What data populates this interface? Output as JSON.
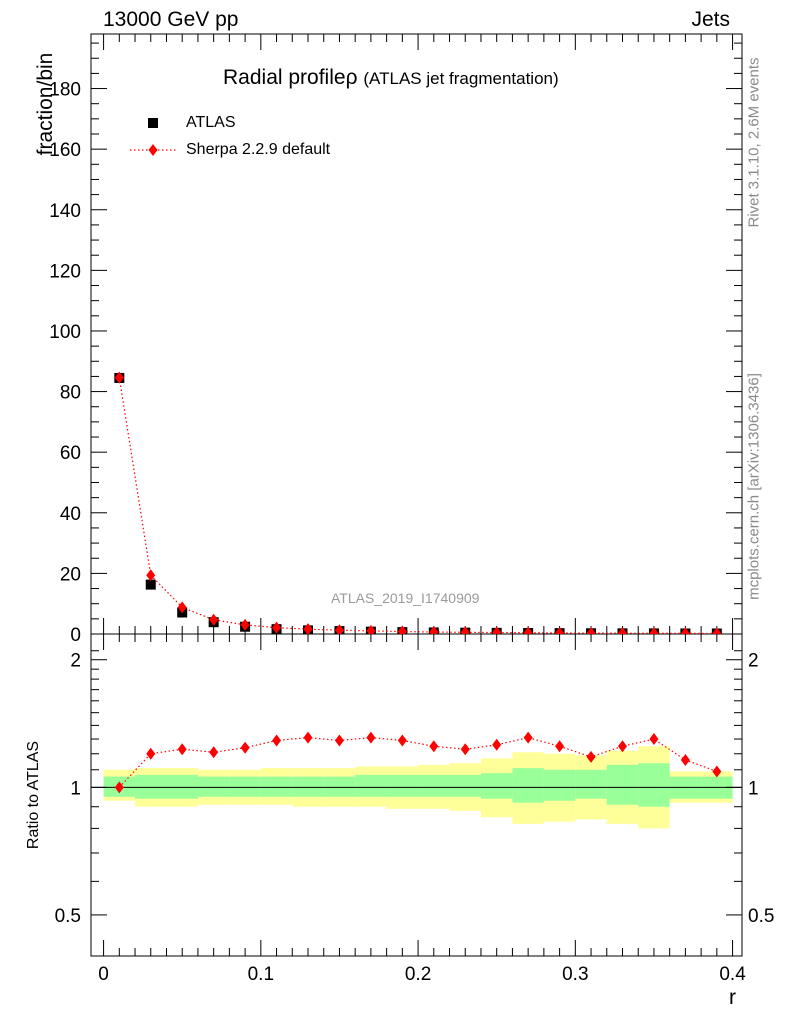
{
  "header": {
    "left": "13000 GeV pp",
    "right": "Jets"
  },
  "side_texts": {
    "rivet": "Rivet 3.1.10,  2.6M events",
    "mcplots": "mcplots.cern.ch [arXiv:1306.3436]"
  },
  "chart_data": {
    "type": "scatter",
    "title": "Radial profile",
    "title_symbol": "ρ",
    "title_suffix": "(ATLAS jet fragmentation)",
    "watermark": "ATLAS_2019_I1740909",
    "xlabel": "r",
    "ylabel": "fraction/bin",
    "ratio_ylabel": "Ratio to ATLAS",
    "xlim": [
      -0.008,
      0.406
    ],
    "ylim": [
      0,
      198
    ],
    "ratio_ylim": [
      0.4,
      2.3
    ],
    "ratio_scale": "log",
    "x_ticks": [
      0,
      0.1,
      0.2,
      0.3,
      0.4
    ],
    "x_tick_labels": [
      "0",
      "0.1",
      "0.2",
      "0.3",
      "0.4"
    ],
    "y_ticks": [
      0,
      20,
      40,
      60,
      80,
      100,
      120,
      140,
      160,
      180
    ],
    "y_tick_labels": [
      "0",
      "20",
      "40",
      "60",
      "80",
      "100",
      "120",
      "140",
      "160",
      "180"
    ],
    "ratio_ticks": [
      0.5,
      1,
      2
    ],
    "ratio_tick_labels": [
      "0.5",
      "1",
      "2"
    ],
    "legend": {
      "placement": "top-left",
      "entries": [
        "ATLAS",
        "Sherpa 2.2.9 default"
      ]
    },
    "bin_edges": [
      0,
      0.02,
      0.04,
      0.06,
      0.08,
      0.1,
      0.12,
      0.14,
      0.16,
      0.18,
      0.2,
      0.22,
      0.24,
      0.26,
      0.28,
      0.3,
      0.32,
      0.34,
      0.36,
      0.38,
      0.4
    ],
    "x": [
      0.01,
      0.03,
      0.05,
      0.07,
      0.09,
      0.11,
      0.13,
      0.15,
      0.17,
      0.19,
      0.21,
      0.23,
      0.25,
      0.27,
      0.29,
      0.31,
      0.33,
      0.35,
      0.37,
      0.39
    ],
    "series": [
      {
        "name": "ATLAS",
        "marker": "square",
        "color": "#000000",
        "values": [
          84.5,
          16.3,
          7.1,
          3.9,
          2.4,
          1.6,
          1.2,
          0.95,
          0.78,
          0.62,
          0.52,
          0.44,
          0.38,
          0.33,
          0.28,
          0.25,
          0.22,
          0.2,
          0.18,
          0.16
        ]
      },
      {
        "name": "Sherpa 2.2.9 default",
        "marker": "diamond",
        "color": "#ff0000",
        "line": "dotted",
        "values": [
          84.6,
          19.4,
          8.8,
          4.7,
          3.0,
          2.1,
          1.6,
          1.25,
          1.03,
          0.81,
          0.65,
          0.55,
          0.49,
          0.43,
          0.35,
          0.3,
          0.28,
          0.26,
          0.21,
          0.18
        ]
      }
    ],
    "ratio": {
      "values": [
        1.0,
        1.2,
        1.23,
        1.21,
        1.24,
        1.29,
        1.31,
        1.29,
        1.31,
        1.29,
        1.25,
        1.23,
        1.26,
        1.31,
        1.25,
        1.18,
        1.25,
        1.3,
        1.16,
        1.09
      ],
      "band_inner": [
        [
          0.95,
          1.06
        ],
        [
          0.94,
          1.07
        ],
        [
          0.94,
          1.07
        ],
        [
          0.95,
          1.06
        ],
        [
          0.95,
          1.06
        ],
        [
          0.95,
          1.06
        ],
        [
          0.95,
          1.06
        ],
        [
          0.95,
          1.06
        ],
        [
          0.95,
          1.07
        ],
        [
          0.95,
          1.07
        ],
        [
          0.95,
          1.07
        ],
        [
          0.95,
          1.07
        ],
        [
          0.94,
          1.08
        ],
        [
          0.92,
          1.11
        ],
        [
          0.93,
          1.1
        ],
        [
          0.94,
          1.1
        ],
        [
          0.91,
          1.13
        ],
        [
          0.9,
          1.14
        ],
        [
          0.94,
          1.06
        ],
        [
          0.94,
          1.06
        ]
      ],
      "band_outer": [
        [
          0.93,
          1.1
        ],
        [
          0.9,
          1.11
        ],
        [
          0.9,
          1.11
        ],
        [
          0.91,
          1.1
        ],
        [
          0.91,
          1.1
        ],
        [
          0.91,
          1.11
        ],
        [
          0.9,
          1.11
        ],
        [
          0.9,
          1.11
        ],
        [
          0.9,
          1.12
        ],
        [
          0.89,
          1.12
        ],
        [
          0.89,
          1.13
        ],
        [
          0.88,
          1.14
        ],
        [
          0.85,
          1.17
        ],
        [
          0.82,
          1.21
        ],
        [
          0.83,
          1.2
        ],
        [
          0.84,
          1.19
        ],
        [
          0.82,
          1.22
        ],
        [
          0.8,
          1.25
        ],
        [
          0.92,
          1.09
        ],
        [
          0.92,
          1.09
        ]
      ],
      "band_inner_color": "#99ff99",
      "band_outer_color": "#ffff99"
    }
  }
}
